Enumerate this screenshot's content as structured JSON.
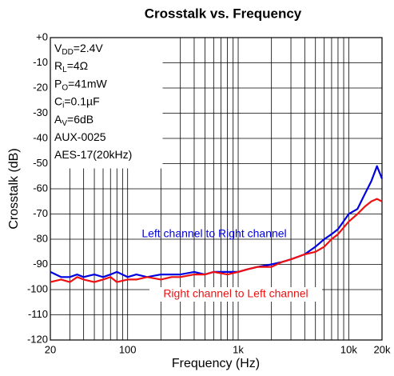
{
  "chart_data": {
    "type": "line",
    "title": "Crosstalk vs. Frequency",
    "x_label": "Frequency (Hz)",
    "y_label": "Crosstalk (dB)",
    "x_scale": "log",
    "grid": true,
    "xlim": [
      20,
      20000
    ],
    "ylim": [
      -120,
      0
    ],
    "xticks": [
      20,
      100,
      {
        "value": 1000,
        "label": "1k"
      },
      {
        "value": 10000,
        "label": "10k"
      },
      {
        "value": 20000,
        "label": "20k"
      }
    ],
    "xminorticks": [
      30,
      40,
      50,
      60,
      70,
      80,
      90,
      200,
      300,
      400,
      500,
      600,
      700,
      800,
      900,
      2000,
      3000,
      4000,
      5000,
      6000,
      7000,
      8000,
      9000
    ],
    "yticks": [
      {
        "value": 0,
        "label": "+0"
      },
      -10,
      -20,
      -30,
      -40,
      -50,
      -60,
      -70,
      -80,
      -90,
      -100,
      -110,
      -120
    ],
    "annotation": [
      [
        "V",
        "DD",
        "=2.4V"
      ],
      [
        "R",
        "L",
        "=4Ω"
      ],
      [
        "P",
        "O",
        "=41mW"
      ],
      [
        "C",
        "i",
        "=0.1µF"
      ],
      [
        "A",
        "V",
        "=6dB"
      ],
      [
        "AUX-0025"
      ],
      [
        "AES-17(20kHz)"
      ]
    ],
    "x": [
      20,
      25,
      30,
      35,
      40,
      50,
      60,
      70,
      80,
      100,
      120,
      150,
      200,
      250,
      300,
      400,
      500,
      600,
      800,
      1000,
      1200,
      1500,
      2000,
      2500,
      3000,
      4000,
      5000,
      6000,
      7000,
      8000,
      10000,
      12000,
      14000,
      16000,
      18000,
      20000
    ],
    "series": [
      {
        "name": "Left channel to Right channel",
        "color": "#0000e0",
        "values": [
          -93,
          -95,
          -95,
          -94,
          -95,
          -94,
          -95,
          -94,
          -93,
          -95,
          -94,
          -95,
          -94,
          -94,
          -94,
          -93,
          -94,
          -93,
          -93,
          -93,
          -92,
          -91,
          -90,
          -89,
          -88,
          -86,
          -83,
          -80,
          -78,
          -76,
          -70,
          -68,
          -62,
          -57,
          -51,
          -56
        ]
      },
      {
        "name": "Right channel to Left channel",
        "color": "#ee1111",
        "values": [
          -97,
          -96,
          -97,
          -95,
          -96,
          -97,
          -96,
          -95,
          -97,
          -96,
          -96,
          -95,
          -96,
          -95,
          -95,
          -94,
          -94,
          -93,
          -94,
          -93,
          -92,
          -91,
          -91,
          -89,
          -88,
          -86,
          -85,
          -83,
          -80,
          -78,
          -73,
          -70,
          -67,
          -65,
          -64,
          -65
        ]
      }
    ]
  }
}
